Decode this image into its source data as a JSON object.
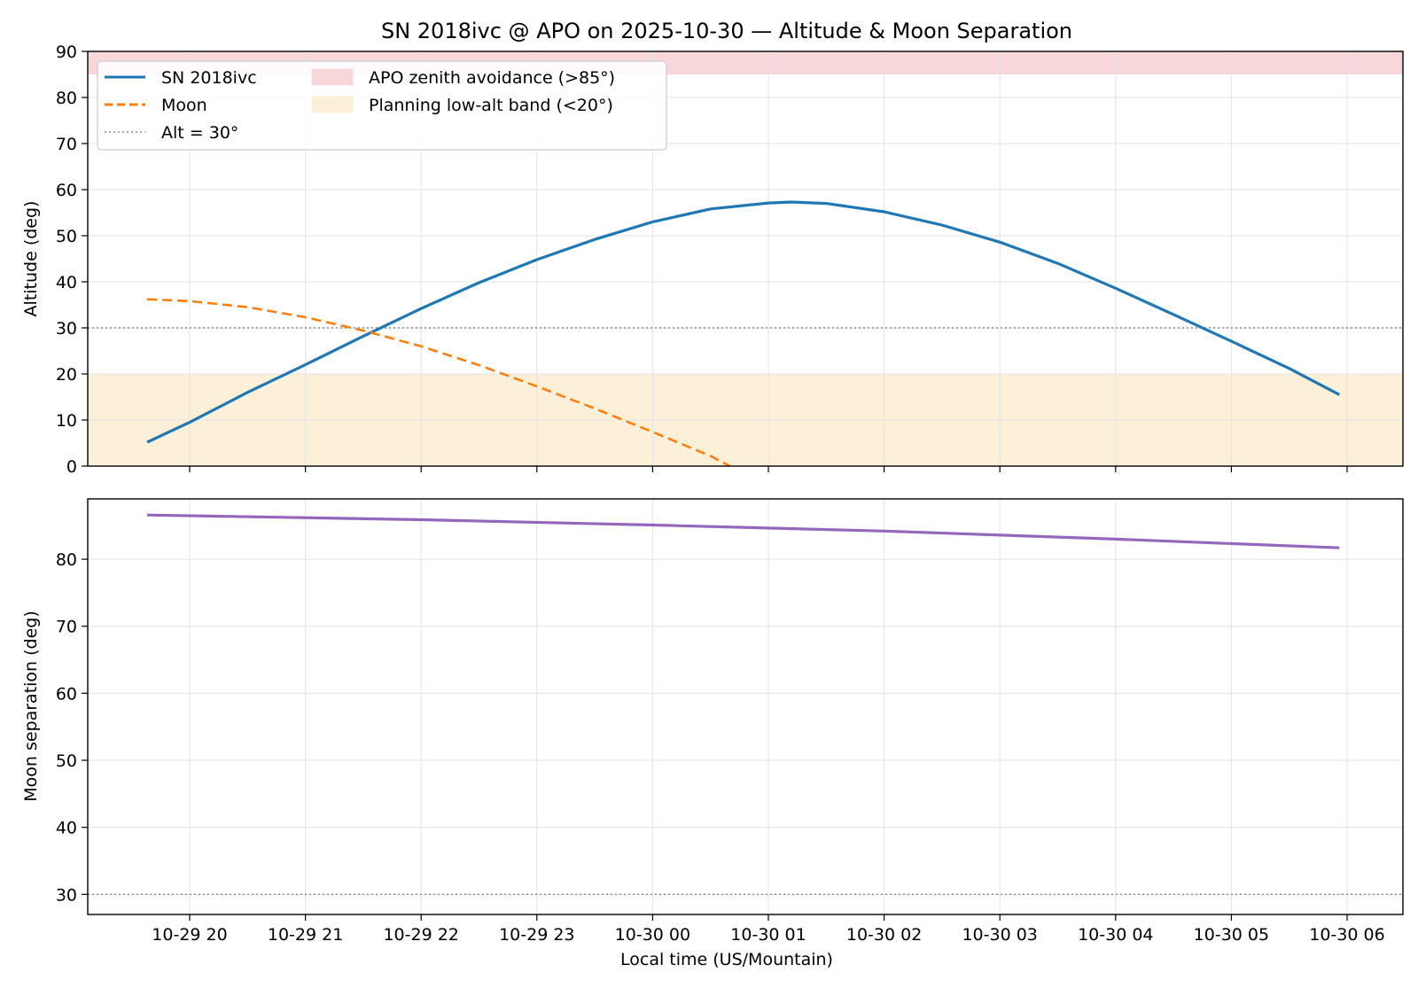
{
  "title": "SN 2018ivc @ APO on 2025-10-30 — Altitude & Moon Separation",
  "colors": {
    "target": "#1f77b4",
    "moon": "#ff7f0e",
    "separation": "#9467bd",
    "ref_line": "#888888",
    "zenith_band": "#f8d7da",
    "low_alt_band": "#fdf0d8",
    "grid": "#e3e3e3"
  },
  "chart_data": [
    {
      "type": "line",
      "panel": "altitude",
      "xlabel": "",
      "ylabel": "Altitude (deg)",
      "ylim": [
        0,
        90
      ],
      "yticks": [
        0,
        10,
        20,
        30,
        40,
        50,
        60,
        70,
        80,
        90
      ],
      "grid": true,
      "legend_position": "top-left",
      "legend": [
        {
          "label": "SN 2018ivc",
          "style": "solid",
          "color": "#1f77b4"
        },
        {
          "label": "Moon",
          "style": "dashed",
          "color": "#ff7f0e"
        },
        {
          "label": "Alt = 30°",
          "style": "dotted",
          "color": "#888888"
        },
        {
          "label": "APO zenith avoidance (>85°)",
          "style": "band",
          "color": "#f8d7da"
        },
        {
          "label": "Planning low-alt band (<20°)",
          "style": "band",
          "color": "#fdf0d8"
        }
      ],
      "bands": [
        {
          "name": "APO zenith avoidance (>85°)",
          "y0": 85,
          "y1": 90
        },
        {
          "name": "Planning low-alt band (<20°)",
          "y0": 0,
          "y1": 20
        }
      ],
      "hlines": [
        {
          "name": "Alt = 30°",
          "y": 30
        }
      ],
      "series": [
        {
          "name": "SN 2018ivc",
          "x": [
            "2025-10-29 19:38",
            "2025-10-29 20:00",
            "2025-10-29 20:30",
            "2025-10-29 21:00",
            "2025-10-29 21:30",
            "2025-10-29 22:00",
            "2025-10-29 22:30",
            "2025-10-29 23:00",
            "2025-10-29 23:30",
            "2025-10-30 00:00",
            "2025-10-30 00:30",
            "2025-10-30 01:00",
            "2025-10-30 01:12",
            "2025-10-30 01:30",
            "2025-10-30 02:00",
            "2025-10-30 02:30",
            "2025-10-30 03:00",
            "2025-10-30 03:30",
            "2025-10-30 04:00",
            "2025-10-30 04:30",
            "2025-10-30 05:00",
            "2025-10-30 05:30",
            "2025-10-30 05:56"
          ],
          "y": [
            5.2,
            9.5,
            16.0,
            22.0,
            28.2,
            34.2,
            39.8,
            44.8,
            49.2,
            53.0,
            55.8,
            57.1,
            57.3,
            57.0,
            55.2,
            52.3,
            48.6,
            44.0,
            38.6,
            32.9,
            27.1,
            21.2,
            15.5
          ]
        },
        {
          "name": "Moon",
          "x": [
            "2025-10-29 19:38",
            "2025-10-29 20:00",
            "2025-10-29 20:30",
            "2025-10-29 21:00",
            "2025-10-29 21:30",
            "2025-10-29 22:00",
            "2025-10-29 22:30",
            "2025-10-29 23:00",
            "2025-10-29 23:30",
            "2025-10-30 00:00",
            "2025-10-30 00:30",
            "2025-10-30 00:40"
          ],
          "y": [
            36.2,
            35.8,
            34.5,
            32.3,
            29.4,
            26.0,
            21.9,
            17.3,
            12.5,
            7.4,
            2.2,
            0.0
          ]
        }
      ]
    },
    {
      "type": "line",
      "panel": "moon_separation",
      "xlabel": "Local time (US/Mountain)",
      "ylabel": "Moon separation (deg)",
      "ylim": [
        27,
        89
      ],
      "yticks": [
        30,
        40,
        50,
        60,
        70,
        80
      ],
      "grid": true,
      "hlines": [
        {
          "y": 30
        }
      ],
      "xticks": [
        "10-29 20",
        "10-29 21",
        "10-29 22",
        "10-29 23",
        "10-30 00",
        "10-30 01",
        "10-30 02",
        "10-30 03",
        "10-30 04",
        "10-30 05",
        "10-30 06"
      ],
      "series": [
        {
          "x": [
            "2025-10-29 19:38",
            "2025-10-29 22:00",
            "2025-10-30 00:00",
            "2025-10-30 02:00",
            "2025-10-30 04:00",
            "2025-10-30 05:56"
          ],
          "y": [
            86.6,
            85.9,
            85.1,
            84.2,
            83.0,
            81.7
          ]
        }
      ]
    }
  ]
}
